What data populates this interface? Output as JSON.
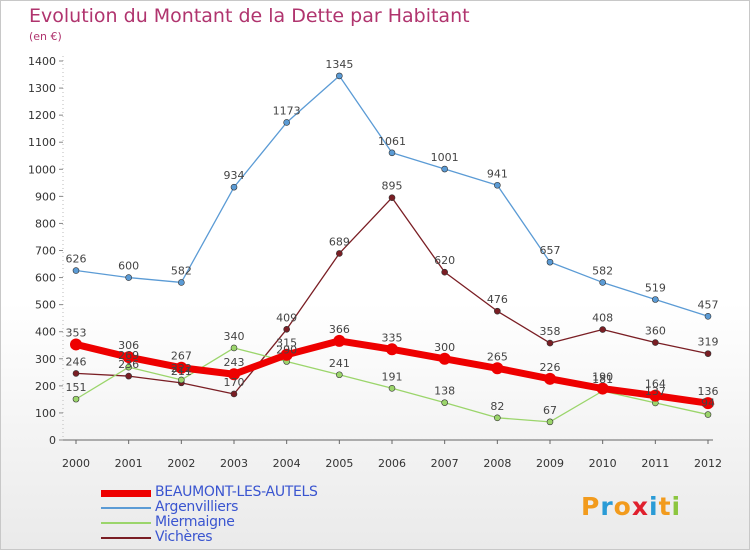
{
  "title": "Evolution du Montant de la Dette par Habitant",
  "subtitle": "(en €)",
  "brand": {
    "letters": [
      "P",
      "r",
      "o",
      "x",
      "i",
      "t",
      "i"
    ],
    "colors": [
      "#f29b1d",
      "#2a9bd6",
      "#f29b1d",
      "#e0202e",
      "#2a9bd6",
      "#f29b1d",
      "#8cc63f"
    ]
  },
  "chart_data": {
    "type": "line",
    "x": [
      "2000",
      "2001",
      "2002",
      "2003",
      "2004",
      "2005",
      "2006",
      "2007",
      "2008",
      "2009",
      "2010",
      "2011",
      "2012"
    ],
    "ylim": [
      0,
      1400
    ],
    "yticks": [
      "0",
      "100",
      "200",
      "300",
      "400",
      "500",
      "600",
      "700",
      "800",
      "900",
      "1000",
      "1100",
      "1200",
      "1300",
      "1400"
    ],
    "grid": false,
    "legend_position": "bottom-left",
    "series": [
      {
        "name": "BEAUMONT-LES-AUTELS",
        "color": "#ee0000",
        "emphasis": true,
        "values": [
          353,
          306,
          267,
          243,
          315,
          366,
          335,
          300,
          265,
          226,
          190,
          164,
          136
        ]
      },
      {
        "name": "Argenvilliers",
        "color": "#5b9bd5",
        "values": [
          626,
          600,
          582,
          934,
          1173,
          1345,
          1061,
          1001,
          941,
          657,
          582,
          519,
          457
        ]
      },
      {
        "name": "Miermaigne",
        "color": "#9bd56b",
        "values": [
          151,
          269,
          222,
          340,
          290,
          241,
          191,
          138,
          82,
          67,
          181,
          137,
          94
        ]
      },
      {
        "name": "Vichères",
        "color": "#7a1e24",
        "values": [
          246,
          236,
          211,
          170,
          409,
          689,
          895,
          620,
          476,
          358,
          408,
          360,
          319
        ]
      }
    ],
    "data_labels": [
      [
        "353",
        "306",
        "267",
        "243",
        "315",
        "366",
        "335",
        "300",
        "265",
        "226",
        "190",
        "164",
        "136"
      ],
      [
        "626",
        "600",
        "582",
        "934",
        "1173",
        "1345",
        "1061",
        "1001",
        "941",
        "657",
        "582",
        "519",
        "457"
      ],
      [
        "151",
        "269",
        "222",
        "340",
        "290",
        "241",
        "191",
        "138",
        "82",
        "67",
        "181",
        "137",
        "94"
      ],
      [
        "246",
        "236",
        "211",
        "170",
        "409",
        "689",
        "895",
        "620",
        "476",
        "358",
        "408",
        "360",
        "319"
      ]
    ]
  }
}
